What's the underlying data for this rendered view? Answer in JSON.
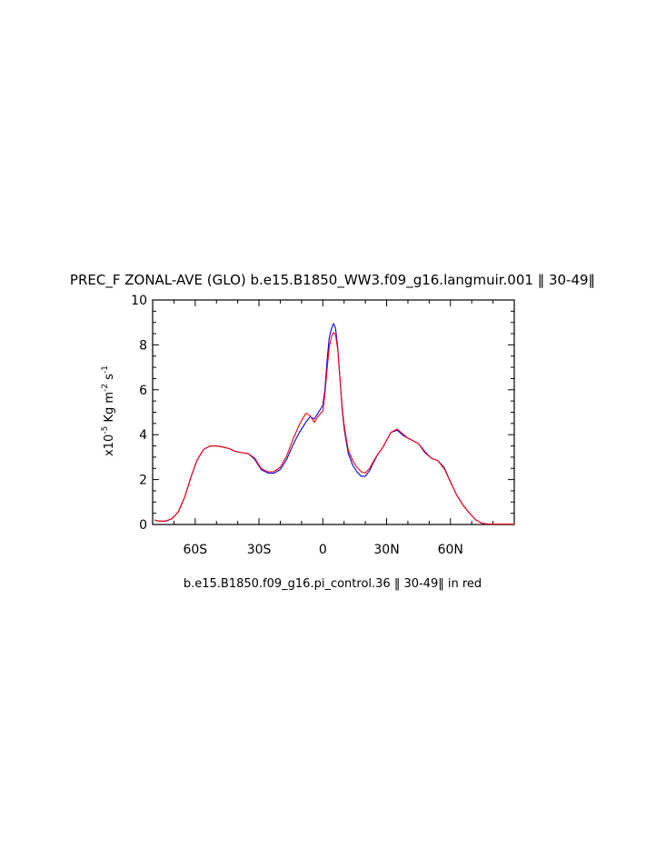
{
  "chart_data": {
    "type": "line",
    "title": "PREC_F ZONAL-AVE (GLO) b.e15.B1850_WW3.f09_g16.langmuir.001 ‖ 30-49‖",
    "subtitle": "b.e15.B1850.f09_g16.pi_control.36 ‖ 30-49‖ in red",
    "ylabel": {
      "base": "x10",
      "exp1": "-5",
      "mid": " Kg m",
      "exp2": "-2",
      "mid2": " s",
      "exp3": "-1"
    },
    "xlim": [
      -80,
      90
    ],
    "ylim": [
      0,
      10
    ],
    "x_ticks": [
      {
        "value": -60,
        "label": "60S"
      },
      {
        "value": -30,
        "label": "30S"
      },
      {
        "value": 0,
        "label": "0"
      },
      {
        "value": 30,
        "label": "30N"
      },
      {
        "value": 60,
        "label": "60N"
      }
    ],
    "y_ticks": [
      {
        "value": 0,
        "label": "0"
      },
      {
        "value": 2,
        "label": "2"
      },
      {
        "value": 4,
        "label": "4"
      },
      {
        "value": 6,
        "label": "6"
      },
      {
        "value": 8,
        "label": "8"
      },
      {
        "value": 10,
        "label": "10"
      }
    ],
    "series": [
      {
        "color": "#0000ff",
        "x": [
          -79,
          -77,
          -74,
          -71,
          -68,
          -65,
          -62,
          -59,
          -56,
          -53,
          -50,
          -47,
          -44,
          -41,
          -38,
          -35,
          -32,
          -29,
          -26,
          -23,
          -20,
          -17,
          -14,
          -11,
          -8,
          -6,
          -4,
          -2,
          0,
          1,
          2,
          3,
          4,
          5,
          6,
          7,
          8,
          9,
          10,
          11,
          12,
          14,
          16,
          18,
          20,
          22,
          24,
          26,
          28,
          30,
          32,
          35,
          38,
          40,
          42,
          45,
          48,
          51,
          54,
          57,
          60,
          63,
          66,
          69,
          72,
          75,
          78,
          81,
          84,
          87,
          90
        ],
        "y": [
          0.2,
          0.15,
          0.15,
          0.25,
          0.55,
          1.2,
          2.1,
          2.9,
          3.35,
          3.5,
          3.5,
          3.45,
          3.38,
          3.25,
          3.2,
          3.15,
          2.9,
          2.45,
          2.3,
          2.28,
          2.45,
          2.9,
          3.55,
          4.1,
          4.55,
          4.8,
          4.7,
          5.0,
          5.3,
          6.0,
          7.3,
          8.3,
          8.7,
          8.95,
          8.75,
          7.9,
          6.6,
          5.2,
          4.3,
          3.7,
          3.15,
          2.65,
          2.35,
          2.15,
          2.15,
          2.4,
          2.8,
          3.15,
          3.4,
          3.75,
          4.1,
          4.2,
          3.95,
          3.85,
          3.75,
          3.6,
          3.2,
          2.95,
          2.85,
          2.55,
          1.9,
          1.3,
          0.85,
          0.5,
          0.2,
          0.05,
          0.02,
          0.02,
          0.02,
          0.02,
          0.02
        ]
      },
      {
        "color": "#ff0000",
        "x": [
          -79,
          -77,
          -74,
          -71,
          -68,
          -65,
          -62,
          -59,
          -56,
          -53,
          -50,
          -47,
          -44,
          -41,
          -38,
          -35,
          -32,
          -29,
          -26,
          -23,
          -20,
          -17,
          -14,
          -11,
          -8,
          -6,
          -4,
          -2,
          0,
          1,
          2,
          3,
          4,
          5,
          6,
          7,
          8,
          9,
          10,
          11,
          12,
          14,
          16,
          18,
          20,
          22,
          24,
          26,
          28,
          30,
          32,
          35,
          38,
          40,
          42,
          45,
          48,
          51,
          54,
          57,
          60,
          63,
          66,
          69,
          72,
          75,
          78,
          81,
          84,
          87,
          90
        ],
        "y": [
          0.2,
          0.15,
          0.15,
          0.25,
          0.55,
          1.2,
          2.1,
          2.9,
          3.35,
          3.5,
          3.5,
          3.45,
          3.38,
          3.25,
          3.2,
          3.15,
          2.95,
          2.5,
          2.35,
          2.35,
          2.55,
          3.05,
          3.8,
          4.45,
          4.95,
          4.85,
          4.55,
          4.85,
          5.05,
          5.8,
          6.9,
          7.9,
          8.35,
          8.55,
          8.45,
          7.8,
          6.6,
          5.3,
          4.45,
          3.85,
          3.3,
          2.85,
          2.55,
          2.35,
          2.3,
          2.5,
          2.85,
          3.15,
          3.4,
          3.75,
          4.1,
          4.25,
          4.0,
          3.85,
          3.75,
          3.6,
          3.25,
          2.95,
          2.85,
          2.5,
          1.9,
          1.3,
          0.85,
          0.5,
          0.2,
          0.05,
          0.02,
          0.02,
          0.02,
          0.02,
          0.02
        ]
      }
    ]
  }
}
